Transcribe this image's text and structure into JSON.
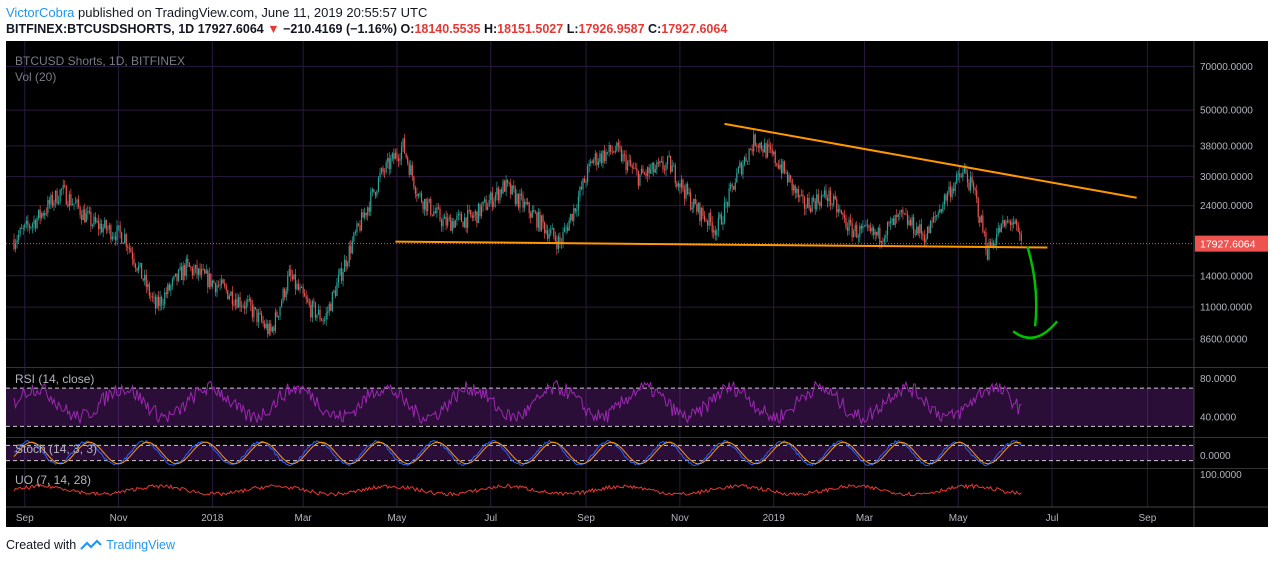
{
  "header": {
    "author": "VictorCobra",
    "published_text": "published on TradingView.com, June 11, 2019 20:55:57 UTC",
    "symbol": "BITFINEX:BTCUSDSHORTS, 1D",
    "last": "17927.6064",
    "change": "−210.4169 (−1.16%)",
    "open_label": "O:",
    "open": "18140.5535",
    "high_label": "H:",
    "high": "18151.5027",
    "low_label": "L:",
    "low": "17926.9587",
    "close_label": "C:",
    "close": "17927.6064"
  },
  "footer": {
    "created_with": "Created with",
    "brand": "TradingView"
  },
  "colors": {
    "background": "#000000",
    "grid": "#2a1a3e",
    "up_candle": "#26a69a",
    "down_candle": "#ef5350",
    "trendline": "#ff9800",
    "price_line": "#ef5350",
    "rsi": "#9c27b0",
    "stoch_k": "#2962ff",
    "stoch_d": "#ff9800",
    "uo": "#e53935",
    "arrow": "#00c000",
    "axis_text": "#b2b5be"
  },
  "chart_data": {
    "type": "candlestick",
    "title": "BTCUSD Shorts, 1D, BITFINEX",
    "volume_label": "Vol (20)",
    "y_scale": "log",
    "ylim": [
      7000,
      80000
    ],
    "y_ticks": [
      "70000.0000",
      "50000.0000",
      "38000.0000",
      "30000.0000",
      "24000.0000",
      "14000.0000",
      "11000.0000",
      "8600.0000"
    ],
    "current_price": "17927.6064",
    "x_ticks": [
      "Sep",
      "Nov",
      "2018",
      "Mar",
      "May",
      "Jul",
      "Sep",
      "Nov",
      "2019",
      "Mar",
      "May",
      "Jul",
      "Sep"
    ],
    "x_tick_dates": [
      "2017-09-01",
      "2017-11-01",
      "2018-01-01",
      "2018-03-01",
      "2018-05-01",
      "2018-07-01",
      "2018-09-01",
      "2018-11-01",
      "2019-01-01",
      "2019-03-01",
      "2019-05-01",
      "2019-07-01",
      "2019-09-01"
    ],
    "xlim": [
      "2017-08-25",
      "2019-09-30"
    ],
    "price_path": [
      {
        "date": "2017-08-25",
        "value": 18500
      },
      {
        "date": "2017-09-10",
        "value": 22000
      },
      {
        "date": "2017-09-25",
        "value": 27000
      },
      {
        "date": "2017-10-15",
        "value": 21000
      },
      {
        "date": "2017-11-05",
        "value": 19000
      },
      {
        "date": "2017-11-25",
        "value": 11000
      },
      {
        "date": "2017-12-15",
        "value": 15000
      },
      {
        "date": "2018-01-05",
        "value": 13000
      },
      {
        "date": "2018-01-25",
        "value": 11000
      },
      {
        "date": "2018-02-08",
        "value": 9000
      },
      {
        "date": "2018-02-20",
        "value": 14000
      },
      {
        "date": "2018-03-05",
        "value": 11000
      },
      {
        "date": "2018-03-15",
        "value": 10000
      },
      {
        "date": "2018-03-31",
        "value": 17000
      },
      {
        "date": "2018-04-20",
        "value": 30000
      },
      {
        "date": "2018-05-05",
        "value": 38000
      },
      {
        "date": "2018-05-15",
        "value": 26000
      },
      {
        "date": "2018-06-01",
        "value": 21000
      },
      {
        "date": "2018-06-20",
        "value": 22000
      },
      {
        "date": "2018-07-10",
        "value": 28000
      },
      {
        "date": "2018-07-30",
        "value": 22000
      },
      {
        "date": "2018-08-15",
        "value": 18000
      },
      {
        "date": "2018-08-25",
        "value": 24000
      },
      {
        "date": "2018-09-05",
        "value": 34000
      },
      {
        "date": "2018-09-20",
        "value": 37000
      },
      {
        "date": "2018-10-05",
        "value": 30000
      },
      {
        "date": "2018-10-25",
        "value": 33000
      },
      {
        "date": "2018-11-10",
        "value": 24000
      },
      {
        "date": "2018-11-25",
        "value": 20000
      },
      {
        "date": "2018-12-10",
        "value": 32000
      },
      {
        "date": "2018-12-20",
        "value": 40000
      },
      {
        "date": "2019-01-05",
        "value": 33000
      },
      {
        "date": "2019-01-20",
        "value": 24000
      },
      {
        "date": "2019-02-05",
        "value": 26000
      },
      {
        "date": "2019-02-20",
        "value": 20000
      },
      {
        "date": "2019-03-10",
        "value": 19000
      },
      {
        "date": "2019-03-25",
        "value": 22000
      },
      {
        "date": "2019-04-10",
        "value": 19000
      },
      {
        "date": "2019-04-25",
        "value": 27000
      },
      {
        "date": "2019-05-05",
        "value": 31000
      },
      {
        "date": "2019-05-12",
        "value": 26000
      },
      {
        "date": "2019-05-20",
        "value": 17000
      },
      {
        "date": "2019-05-28",
        "value": 20000
      },
      {
        "date": "2019-06-05",
        "value": 21500
      },
      {
        "date": "2019-06-11",
        "value": 17927
      }
    ],
    "trendlines": [
      {
        "name": "descending-resistance",
        "from": {
          "date": "2018-11-30",
          "value": 45000
        },
        "to": {
          "date": "2019-08-25",
          "value": 25500
        }
      },
      {
        "name": "horizontal-support",
        "from": {
          "date": "2018-04-30",
          "value": 18200
        },
        "to": {
          "date": "2019-06-28",
          "value": 17400
        }
      }
    ],
    "projection_arrow": {
      "from": {
        "date": "2019-06-15",
        "value": 17500
      },
      "to": {
        "date": "2019-06-20",
        "value": 9500
      }
    },
    "indicators": [
      {
        "name": "RSI (14, close)",
        "ticks": [
          "80.0000",
          "40.0000"
        ],
        "ylim": [
          20,
          90
        ],
        "bands": [
          70,
          30
        ]
      },
      {
        "name": "Stoch (14, 3, 3)",
        "ticks": [
          "0.0000"
        ],
        "ylim": [
          -5,
          105
        ],
        "bands": [
          80,
          20
        ]
      },
      {
        "name": "UO (7, 14, 28)",
        "ticks": [
          "100.0000"
        ],
        "ylim": [
          20,
          110
        ]
      }
    ]
  }
}
